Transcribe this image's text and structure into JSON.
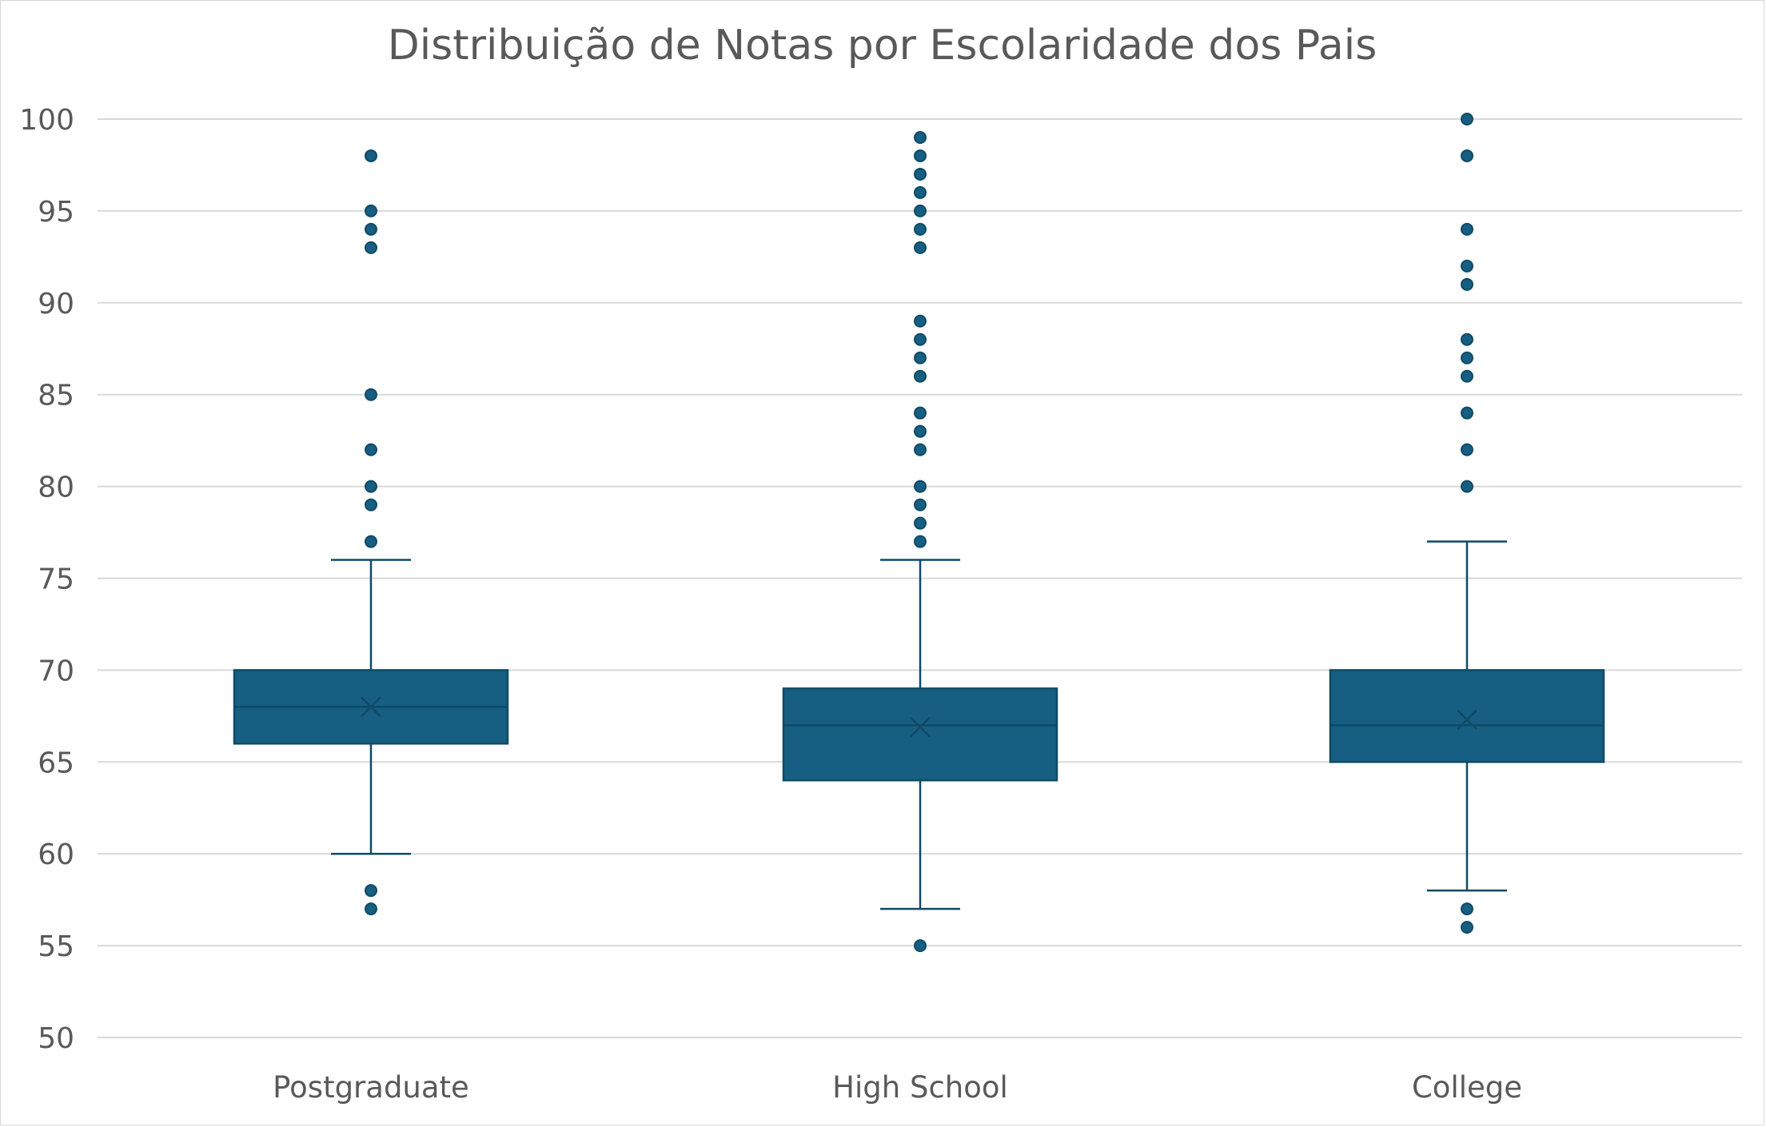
{
  "chart_data": {
    "type": "box",
    "title": "Distribuição de Notas por Escolaridade dos Pais",
    "xlabel": "",
    "ylabel": "",
    "ylim": [
      50,
      100
    ],
    "yticks": [
      50,
      55,
      60,
      65,
      70,
      75,
      80,
      85,
      90,
      95,
      100
    ],
    "grid": true,
    "legend": "none",
    "color": "#165f82",
    "line_color": "#0f4a66",
    "gridline_color": "#d9d9d9",
    "categories": [
      "Postgraduate",
      "High School",
      "College"
    ],
    "boxes": [
      {
        "category": "Postgraduate",
        "whisker_low": 60,
        "q1": 66,
        "median": 68,
        "q3": 70,
        "whisker_high": 76,
        "mean": 68,
        "outliers": [
          57,
          58,
          77,
          79,
          80,
          82,
          85,
          93,
          94,
          95,
          98
        ]
      },
      {
        "category": "High School",
        "whisker_low": 57,
        "q1": 64,
        "median": 67,
        "q3": 69,
        "whisker_high": 76,
        "mean": 66.9,
        "outliers": [
          55,
          77,
          78,
          79,
          80,
          82,
          83,
          84,
          86,
          87,
          88,
          89,
          93,
          94,
          95,
          96,
          97,
          98,
          99
        ]
      },
      {
        "category": "College",
        "whisker_low": 58,
        "q1": 65,
        "median": 67,
        "q3": 70,
        "whisker_high": 77,
        "mean": 67.3,
        "outliers": [
          56,
          57,
          80,
          82,
          84,
          86,
          87,
          88,
          91,
          92,
          94,
          98,
          100
        ]
      }
    ]
  }
}
